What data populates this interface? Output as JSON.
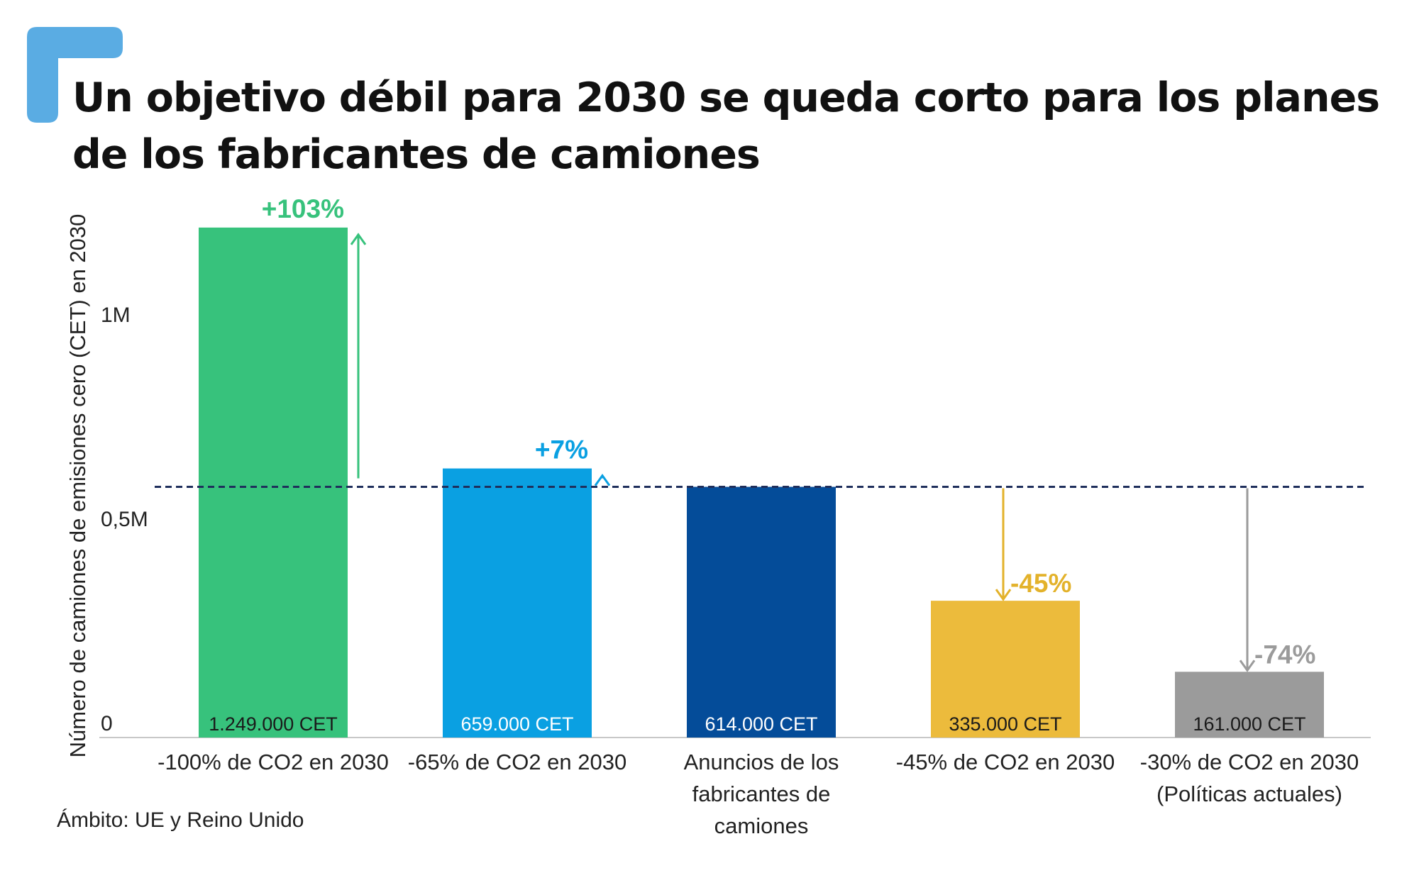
{
  "title": "Un objetivo débil para 2030 se queda corto para los planes de los fabricantes de camiones",
  "note": "Ámbito: UE y Reino Unido",
  "colors": {
    "accent": "#5aace3",
    "reference_line": "#1f2f5c",
    "axis": "#c8c8c8",
    "text": "#222222"
  },
  "chart_data": {
    "type": "bar",
    "title": "Un objetivo débil para 2030 se queda corto para los planes de los fabricantes de camiones",
    "xlabel": "",
    "ylabel": "Número de camiones de emisiones cero (CET) en 2030",
    "ylim": [
      0,
      1320000
    ],
    "grid": false,
    "ticks": [
      {
        "value": 0,
        "label": "0"
      },
      {
        "value": 500000,
        "label": "0,5M"
      },
      {
        "value": 1000000,
        "label": "1M"
      }
    ],
    "categories": [
      [
        "-100% de CO2 en 2030"
      ],
      [
        "-65% de CO2 en 2030"
      ],
      [
        "Anuncios de los",
        "fabricantes de",
        "camiones"
      ],
      [
        "-45% de CO2 en 2030"
      ],
      [
        "-30% de CO2 en 2030",
        "(Políticas actuales)"
      ]
    ],
    "values": [
      1249000,
      659000,
      614000,
      335000,
      161000
    ],
    "value_labels": [
      "1.249.000 CET",
      "659.000 CET",
      "614.000 CET",
      "335.000 CET",
      "161.000 CET"
    ],
    "bar_colors": [
      "#37c27c",
      "#0aa0e2",
      "#044c99",
      "#ecbb3c",
      "#9b9b9b"
    ],
    "value_label_colors": [
      "#1a1a1a",
      "#ffffff",
      "#ffffff",
      "#1a1a1a",
      "#1a1a1a"
    ],
    "reference": {
      "value": 614000
    },
    "annotations": [
      {
        "bar": 0,
        "label": "+103%",
        "color": "#37c27c",
        "direction": "up"
      },
      {
        "bar": 1,
        "label": "+7%",
        "color": "#0aa0e2",
        "direction": "up"
      },
      {
        "bar": 3,
        "label": "-45%",
        "color": "#e3b22b",
        "direction": "down"
      },
      {
        "bar": 4,
        "label": "-74%",
        "color": "#9b9b9b",
        "direction": "down"
      }
    ]
  }
}
